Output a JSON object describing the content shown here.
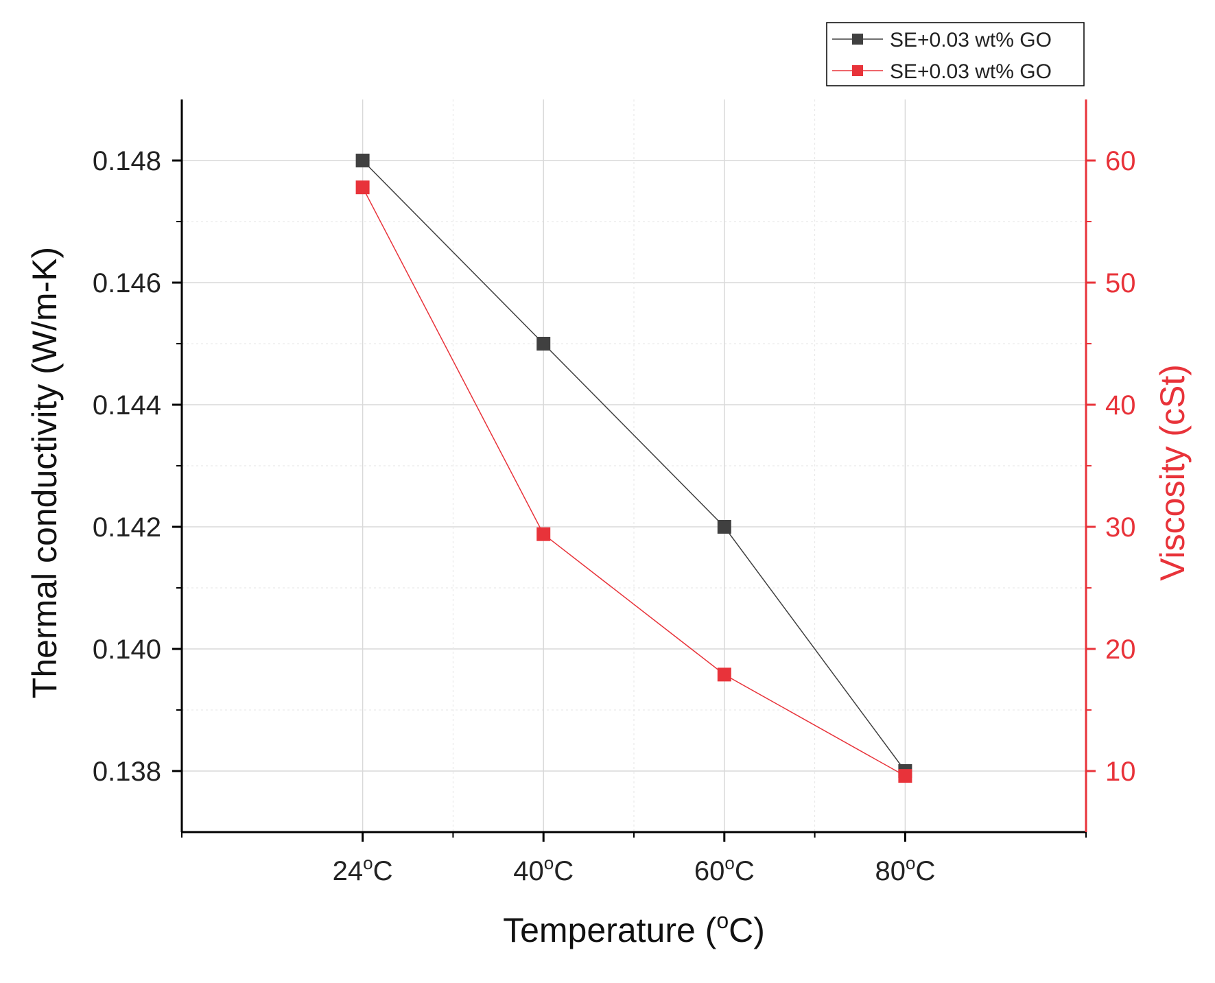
{
  "chart_data": {
    "type": "line",
    "title": "",
    "xlabel": "Temperature (oC)",
    "xlabel_parts": {
      "prefix": "Temperature (",
      "sup": "o",
      "suffix": "C)"
    },
    "ylabel": "Thermal conductivity (W/m-K)",
    "y2label": "Viscosity (cSt)",
    "categories": [
      "24oC",
      "40oC",
      "60oC",
      "80oC"
    ],
    "category_parts": [
      {
        "num": "24",
        "sup": "o",
        "unit": "C"
      },
      {
        "num": "40",
        "sup": "o",
        "unit": "C"
      },
      {
        "num": "60",
        "sup": "o",
        "unit": "C"
      },
      {
        "num": "80",
        "sup": "o",
        "unit": "C"
      }
    ],
    "ylim": [
      0.137,
      0.149
    ],
    "yticks": [
      "0.138",
      "0.140",
      "0.142",
      "0.144",
      "0.146",
      "0.148"
    ],
    "y2lim": [
      5,
      65
    ],
    "y2ticks": [
      "10",
      "20",
      "30",
      "40",
      "50",
      "60"
    ],
    "grid": true,
    "legend_position": "top-right",
    "series": [
      {
        "name": "SE+0.03 wt% GO",
        "axis": "left",
        "color": "#404040",
        "values": [
          0.148,
          0.145,
          0.142,
          0.138
        ]
      },
      {
        "name": "SE+0.03 wt% GO",
        "axis": "right",
        "color": "#e8333a",
        "values": [
          57.8,
          29.4,
          17.9,
          9.6
        ]
      }
    ]
  }
}
